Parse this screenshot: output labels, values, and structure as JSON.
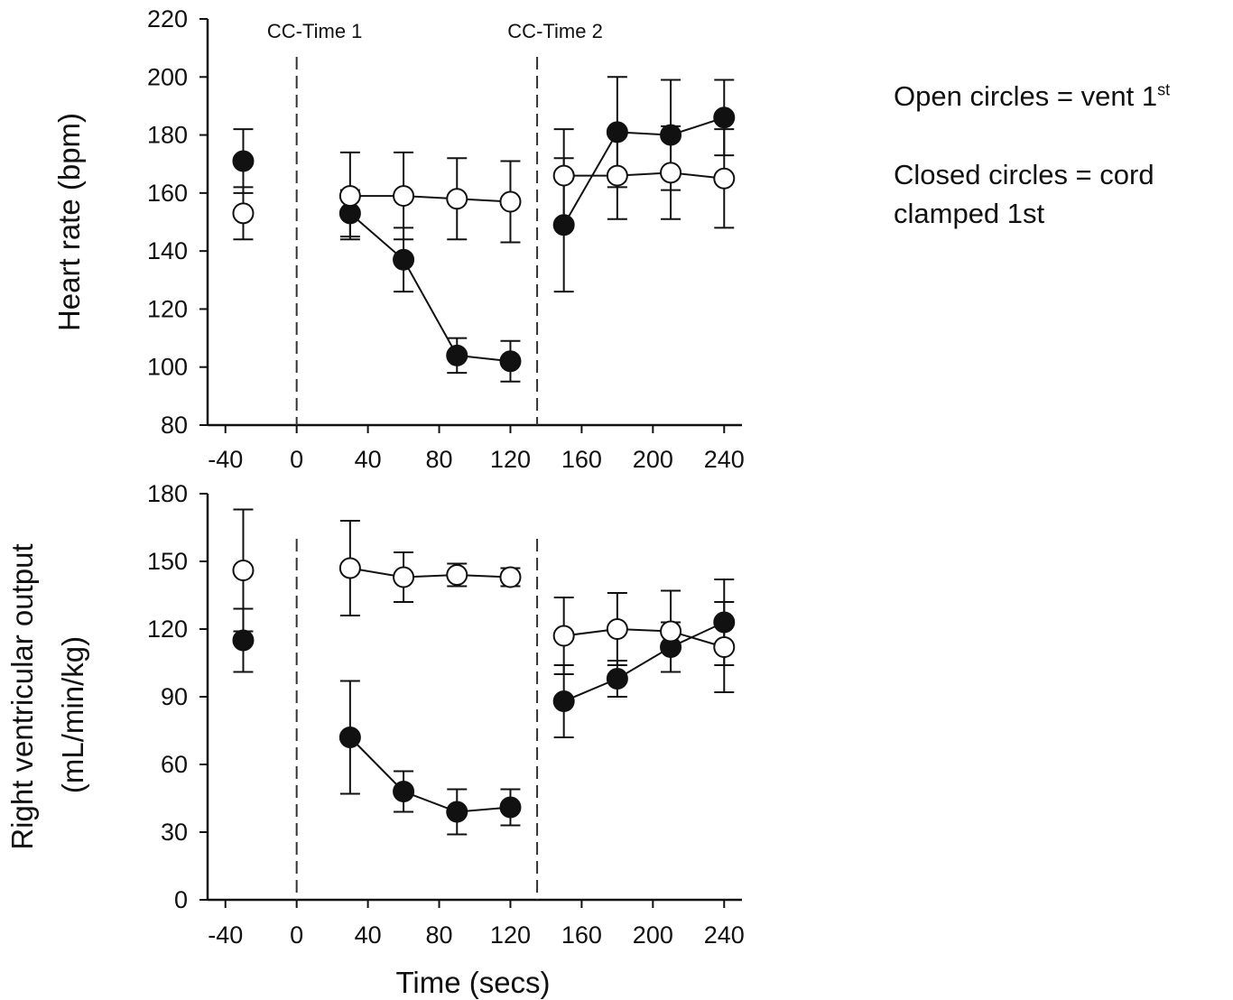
{
  "legend": {
    "open_line": "Open circles = vent 1",
    "open_sup": "st",
    "closed_line1": "Closed circles = cord",
    "closed_line2": "clamped 1st"
  },
  "chart_data": [
    {
      "type": "scatter",
      "panel": "top",
      "ylabel": "Heart rate (bpm)",
      "xlabel": "",
      "xlim": [
        -50,
        250
      ],
      "ylim": [
        80,
        220
      ],
      "xticks": [
        -40,
        0,
        40,
        80,
        120,
        160,
        200,
        240
      ],
      "yticks": [
        80,
        100,
        120,
        140,
        160,
        180,
        200,
        220
      ],
      "vlines": [
        {
          "x": 0,
          "label": "CC-Time 1"
        },
        {
          "x": 135,
          "label": "CC-Time 2"
        }
      ],
      "series": [
        {
          "marker": "closed",
          "points": [
            {
              "x": -30,
              "y": 171,
              "err": 11
            },
            {
              "x": 30,
              "y": 153,
              "err": 8
            },
            {
              "x": 60,
              "y": 137,
              "err": 11
            },
            {
              "x": 90,
              "y": 104,
              "err": 6
            },
            {
              "x": 120,
              "y": 102,
              "err": 7
            },
            {
              "x": 150,
              "y": 149,
              "err": 23
            },
            {
              "x": 180,
              "y": 181,
              "err": 19
            },
            {
              "x": 210,
              "y": 180,
              "err": 19
            },
            {
              "x": 240,
              "y": 186,
              "err": 13
            }
          ],
          "segments": [
            [
              1,
              4
            ],
            [
              5,
              8
            ]
          ]
        },
        {
          "marker": "open",
          "points": [
            {
              "x": -30,
              "y": 153,
              "err": 9
            },
            {
              "x": 30,
              "y": 159,
              "err": 15
            },
            {
              "x": 60,
              "y": 159,
              "err": 15
            },
            {
              "x": 90,
              "y": 158,
              "err": 14
            },
            {
              "x": 120,
              "y": 157,
              "err": 14
            },
            {
              "x": 150,
              "y": 166,
              "err": 16
            },
            {
              "x": 180,
              "y": 166,
              "err": 15
            },
            {
              "x": 210,
              "y": 167,
              "err": 16
            },
            {
              "x": 240,
              "y": 165,
              "err": 17
            }
          ],
          "segments": [
            [
              1,
              4
            ],
            [
              5,
              8
            ]
          ]
        }
      ]
    },
    {
      "type": "scatter",
      "panel": "bottom",
      "ylabel": "Right ventricular output",
      "ylabel2": "(mL/min/kg)",
      "xlabel": "Time (secs)",
      "xlim": [
        -50,
        250
      ],
      "ylim": [
        0,
        180
      ],
      "xticks": [
        -40,
        0,
        40,
        80,
        120,
        160,
        200,
        240
      ],
      "yticks": [
        0,
        30,
        60,
        90,
        120,
        150,
        180
      ],
      "vlines": [
        {
          "x": 0,
          "label": ""
        },
        {
          "x": 135,
          "label": ""
        }
      ],
      "series": [
        {
          "marker": "closed",
          "points": [
            {
              "x": -30,
              "y": 115,
              "err": 14
            },
            {
              "x": 30,
              "y": 72,
              "err": 25
            },
            {
              "x": 60,
              "y": 48,
              "err": 9
            },
            {
              "x": 90,
              "y": 39,
              "err": 10
            },
            {
              "x": 120,
              "y": 41,
              "err": 8
            },
            {
              "x": 150,
              "y": 88,
              "err": 16
            },
            {
              "x": 180,
              "y": 98,
              "err": 8
            },
            {
              "x": 210,
              "y": 112,
              "err": 11
            },
            {
              "x": 240,
              "y": 123,
              "err": 19
            }
          ],
          "segments": [
            [
              1,
              4
            ],
            [
              5,
              8
            ]
          ]
        },
        {
          "marker": "open",
          "points": [
            {
              "x": -30,
              "y": 146,
              "err": 27
            },
            {
              "x": 30,
              "y": 147,
              "err": 21
            },
            {
              "x": 60,
              "y": 143,
              "err": 11
            },
            {
              "x": 90,
              "y": 144,
              "err": 5
            },
            {
              "x": 120,
              "y": 143,
              "err": 4
            },
            {
              "x": 150,
              "y": 117,
              "err": 17
            },
            {
              "x": 180,
              "y": 120,
              "err": 16
            },
            {
              "x": 210,
              "y": 119,
              "err": 18
            },
            {
              "x": 240,
              "y": 112,
              "err": 20
            }
          ],
          "segments": [
            [
              1,
              4
            ],
            [
              5,
              8
            ]
          ]
        }
      ]
    }
  ]
}
